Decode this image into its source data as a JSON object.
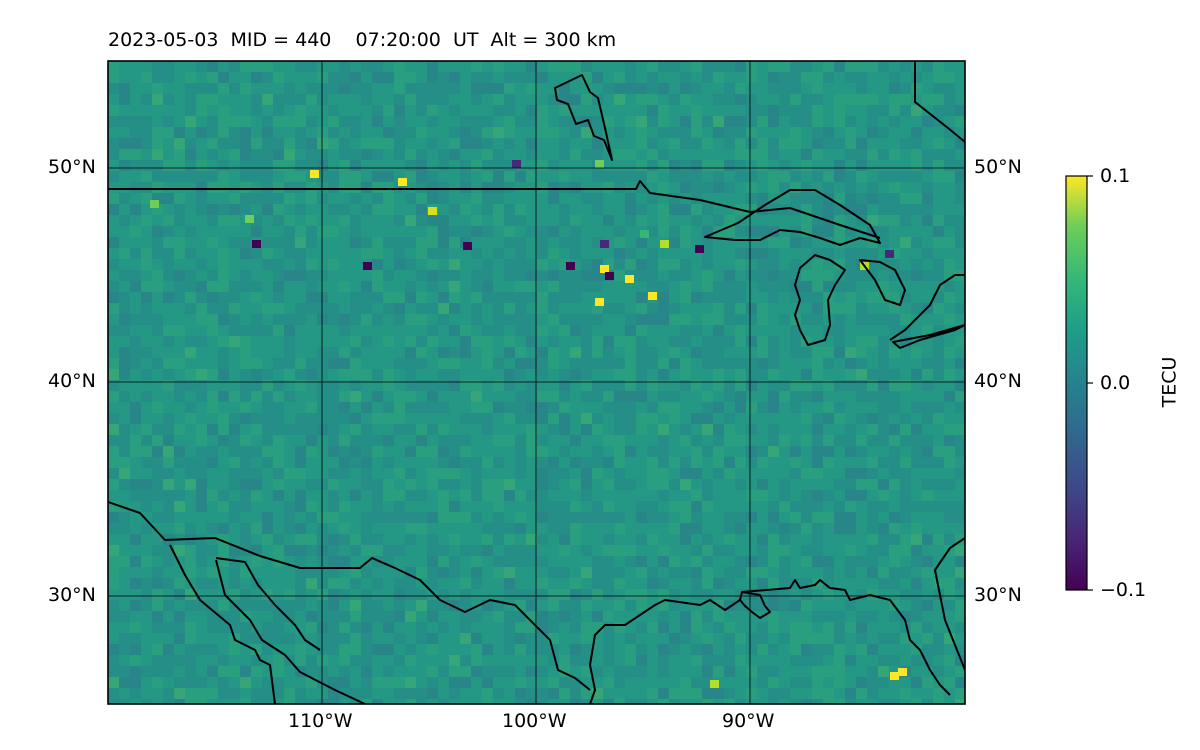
{
  "title": "2023-05-03  MID = 440    07:20:00  UT  Alt = 300 km",
  "map": {
    "projection": "PlateCarree",
    "lon_range": [
      -120,
      -80
    ],
    "lat_range": [
      25,
      55
    ],
    "gridlines": true,
    "coastlines": true,
    "borders": true,
    "lat_labels": [
      "50°N",
      "40°N",
      "30°N"
    ],
    "lon_labels": [
      "110°W",
      "100°W",
      "90°W"
    ],
    "field": "TEC residual map (mostly near 0 TECU, speckled anomalies near the US–Canada border and Great Lakes)"
  },
  "colorbar": {
    "label": "TECU",
    "colormap": "viridis",
    "max_label": "0.1",
    "mid_label": "0.0",
    "min_label": "−0.1",
    "range": [
      -0.1,
      0.1
    ]
  },
  "colors": {
    "low": "#440154",
    "mid": "#21918c",
    "high": "#fde725",
    "coast": "#000000"
  }
}
